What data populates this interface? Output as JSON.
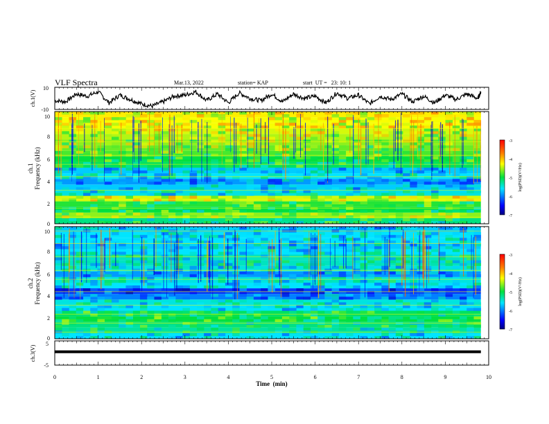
{
  "header": {
    "title": "VLF Spectra",
    "date": "Mar.13, 2022",
    "station": "station= KAP",
    "start_ut": "start  UT =   23: 10: 1"
  },
  "chart_data": [
    {
      "type": "line",
      "title": "",
      "ylabel": "ch.1(V)",
      "ylim": [
        -10,
        10
      ],
      "yticks": [
        "10",
        "-10"
      ],
      "xlim": [
        0,
        10
      ],
      "x": [
        0.0,
        0.25,
        0.5,
        0.75,
        1.0,
        1.25,
        1.5,
        1.75,
        2.0,
        2.25,
        2.5,
        2.75,
        3.0,
        3.25,
        3.5,
        3.75,
        4.0,
        4.25,
        4.5,
        4.75,
        5.0,
        5.25,
        5.5,
        5.75,
        6.0,
        6.25,
        6.5,
        6.75,
        7.0,
        7.25,
        7.5,
        7.75,
        8.0,
        8.25,
        8.5,
        8.75,
        9.0,
        9.25,
        9.5,
        9.75,
        9.82
      ],
      "values": [
        -2,
        -3,
        4,
        2,
        6,
        -4,
        3,
        -1,
        -5,
        -7,
        -3,
        2,
        3,
        6,
        -2,
        4,
        -4,
        5,
        0,
        -2,
        4,
        -3,
        4,
        0,
        2,
        -4,
        5,
        0,
        3,
        -5,
        2,
        -1,
        4,
        -3,
        2,
        -4,
        3,
        -1,
        4,
        0,
        6
      ],
      "color": "#000000"
    },
    {
      "type": "heatmap",
      "title": "",
      "ylabel": "ch.1",
      "ylabel2": "Frequency (kHz)",
      "ylim": [
        0,
        10
      ],
      "yticks": [
        "0",
        "2",
        "4",
        "6",
        "8",
        "10"
      ],
      "xlim": [
        0,
        9.82
      ],
      "colorbar": {
        "label": "log(PSD)(V²/Hz)",
        "range": [
          -7,
          -3
        ],
        "ticks": [
          "-3",
          "-4",
          "-5",
          "-6",
          "-7"
        ]
      },
      "band_levels": [
        {
          "f": 0.25,
          "level": -5.2
        },
        {
          "f": 0.75,
          "level": -4.6
        },
        {
          "f": 1.25,
          "level": -5.0
        },
        {
          "f": 1.75,
          "level": -4.9
        },
        {
          "f": 2.25,
          "level": -4.4
        },
        {
          "f": 2.75,
          "level": -5.5
        },
        {
          "f": 3.25,
          "level": -5.7
        },
        {
          "f": 3.75,
          "level": -5.9
        },
        {
          "f": 4.25,
          "level": -5.6
        },
        {
          "f": 4.75,
          "level": -5.7
        },
        {
          "f": 5.25,
          "level": -5.1
        },
        {
          "f": 5.75,
          "level": -5.0
        },
        {
          "f": 6.25,
          "level": -4.8
        },
        {
          "f": 6.75,
          "level": -4.7
        },
        {
          "f": 7.25,
          "level": -4.6
        },
        {
          "f": 7.75,
          "level": -4.5
        },
        {
          "f": 8.25,
          "level": -4.4
        },
        {
          "f": 8.75,
          "level": -4.3
        },
        {
          "f": 9.25,
          "level": -4.3
        },
        {
          "f": 9.75,
          "level": -4.2
        }
      ]
    },
    {
      "type": "heatmap",
      "title": "",
      "ylabel": "ch.2",
      "ylabel2": "Frequency (kHz)",
      "ylim": [
        0,
        10
      ],
      "yticks": [
        "0",
        "2",
        "4",
        "6",
        "8",
        "10"
      ],
      "xlim": [
        0,
        9.82
      ],
      "colorbar": {
        "label": "log(PSD)(V²/Hz)",
        "range": [
          -7,
          -3
        ],
        "ticks": [
          "-3",
          "-4",
          "-5",
          "-6",
          "-7"
        ]
      },
      "band_levels": [
        {
          "f": 0.25,
          "level": -5.6
        },
        {
          "f": 0.75,
          "level": -5.3
        },
        {
          "f": 1.25,
          "level": -5.2
        },
        {
          "f": 1.75,
          "level": -5.0
        },
        {
          "f": 2.25,
          "level": -5.1
        },
        {
          "f": 2.75,
          "level": -5.6
        },
        {
          "f": 3.25,
          "level": -5.5
        },
        {
          "f": 3.75,
          "level": -6.0
        },
        {
          "f": 4.25,
          "level": -6.3
        },
        {
          "f": 4.75,
          "level": -5.6
        },
        {
          "f": 5.25,
          "level": -5.5
        },
        {
          "f": 5.75,
          "level": -5.9
        },
        {
          "f": 6.25,
          "level": -5.5
        },
        {
          "f": 6.75,
          "level": -5.4
        },
        {
          "f": 7.25,
          "level": -5.4
        },
        {
          "f": 7.75,
          "level": -5.6
        },
        {
          "f": 8.25,
          "level": -5.7
        },
        {
          "f": 8.75,
          "level": -5.6
        },
        {
          "f": 9.25,
          "level": -5.6
        },
        {
          "f": 9.75,
          "level": -5.7
        }
      ]
    },
    {
      "type": "line",
      "title": "",
      "ylabel": "ch.3(V)",
      "ylim": [
        -5,
        5
      ],
      "yticks": [
        "5",
        "-5"
      ],
      "xlim": [
        0,
        10
      ],
      "xlabel": "Time  (min)",
      "xticks": [
        "0",
        "1",
        "2",
        "3",
        "4",
        "5",
        "6",
        "7",
        "8",
        "9",
        "10"
      ],
      "x": [
        0.0,
        9.82
      ],
      "values": [
        0.5,
        0.5
      ],
      "color": "#000000"
    }
  ]
}
